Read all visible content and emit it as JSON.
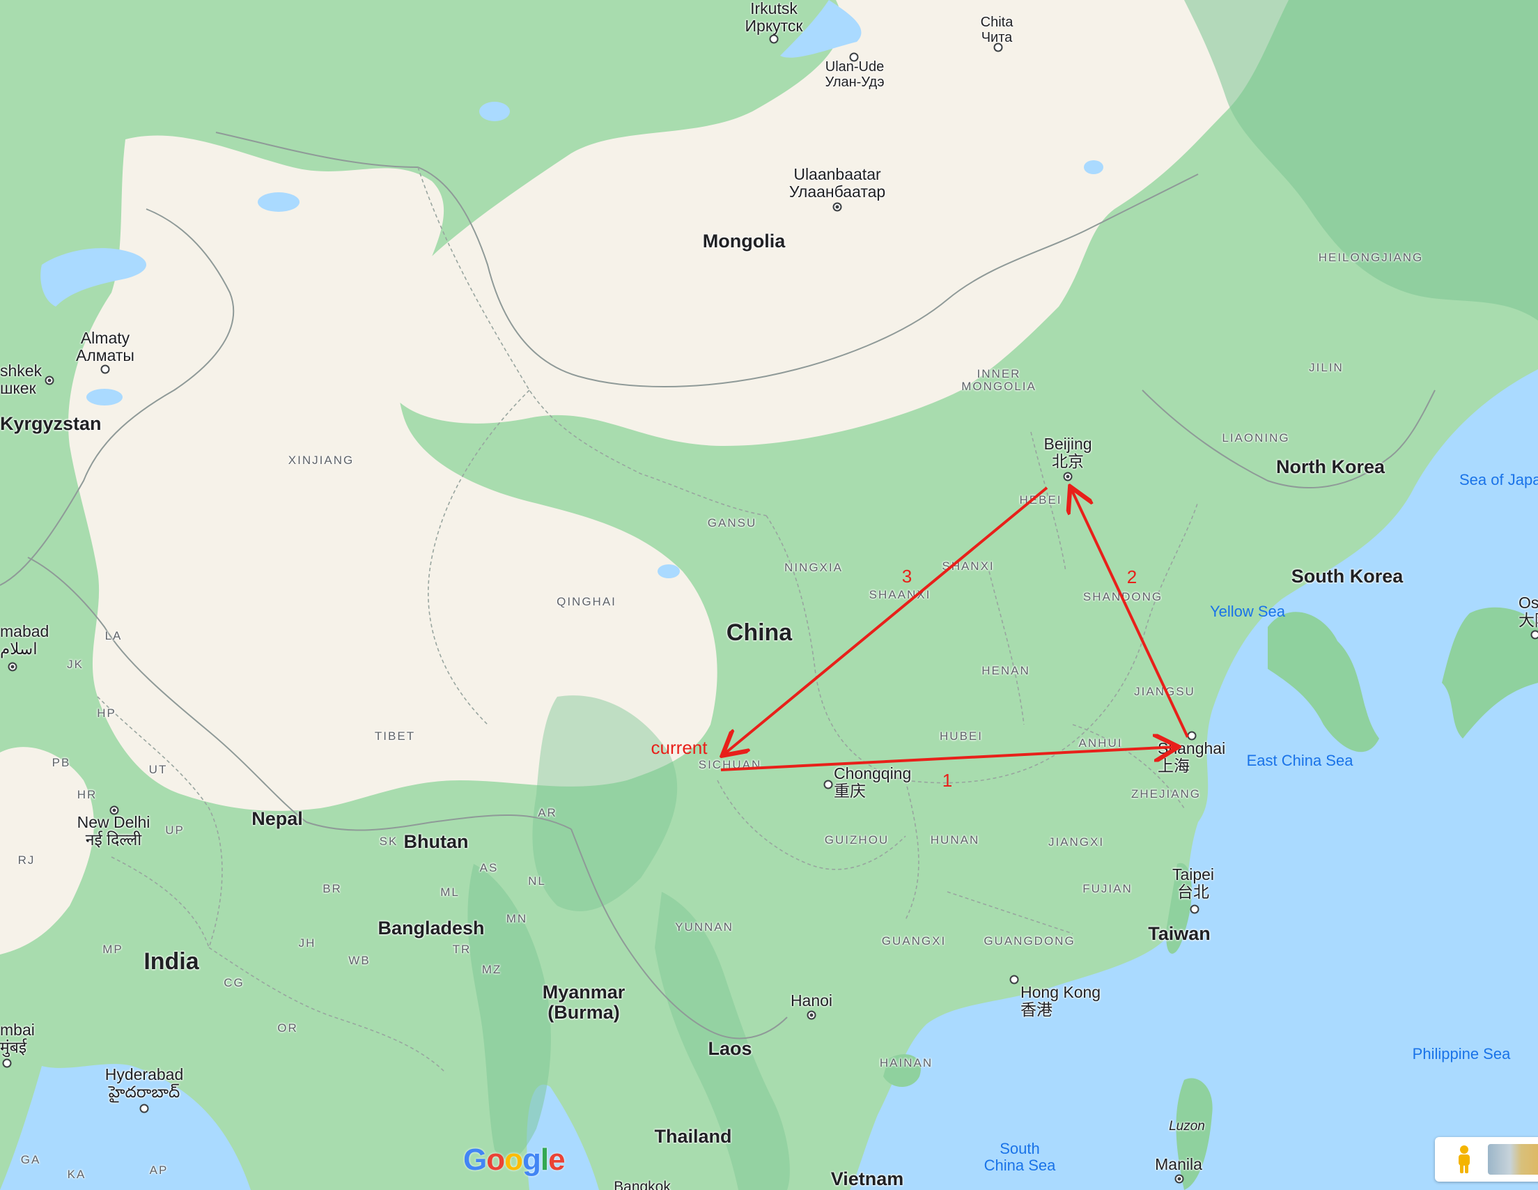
{
  "map": {
    "provider_logo": "Google",
    "colors": {
      "water": "#aadaff",
      "desert": "#f6f2e9",
      "vegetation": "#a8dcae",
      "forest": "#7cc594",
      "annotation": "#e8201a"
    }
  },
  "countries": {
    "china": "China",
    "mongolia": "Mongolia",
    "north_korea": "North Korea",
    "south_korea": "South Korea",
    "kyrgyzstan": "Kyrgyzstan",
    "nepal": "Nepal",
    "bhutan": "Bhutan",
    "bangladesh": "Bangladesh",
    "india": "India",
    "myanmar": [
      "Myanmar",
      "(Burma)"
    ],
    "laos": "Laos",
    "thailand": "Thailand",
    "vietnam": "Vietnam",
    "taiwan": "Taiwan"
  },
  "cities": {
    "irkutsk": [
      "Irkutsk",
      "Иркутск"
    ],
    "chita": [
      "Chita",
      "Чита"
    ],
    "ulan_ude": [
      "Ulan-Ude",
      "Улан-Удэ"
    ],
    "ulaanbaatar": [
      "Ulaanbaatar",
      "Улаанбаатар"
    ],
    "almaty": [
      "Almaty",
      "Алматы"
    ],
    "bishkek": [
      "shkek",
      "шкек"
    ],
    "beijing": [
      "Beijing",
      "北京"
    ],
    "shanghai": [
      "Shanghai",
      "上海"
    ],
    "chongqing": [
      "Chongqing",
      "重庆"
    ],
    "taipei": [
      "Taipei",
      "台北"
    ],
    "hong_kong": [
      "Hong Kong",
      "香港"
    ],
    "hanoi": "Hanoi",
    "new_delhi": [
      "New Delhi",
      "नई दिल्ली"
    ],
    "islamabad": [
      "mabad",
      "اسلام"
    ],
    "mumbai": [
      "mbai",
      "मुंबई"
    ],
    "hyderabad": [
      "Hyderabad",
      "హైదరాబాద్"
    ],
    "manila": "Manila",
    "osaka": [
      "Osa",
      "大阪"
    ],
    "bangkok": "Bangkok",
    "luzon": "Luzon"
  },
  "regions": {
    "xinjiang": "XINJIANG",
    "tibet": "TIBET",
    "qinghai": "QINGHAI",
    "gansu": "GANSU",
    "ningxia": "NINGXIA",
    "shaanxi": "SHAANXI",
    "shanxi": "SHANXI",
    "hebei": "HEBEI",
    "shandong": "SHANDONG",
    "henan": "HENAN",
    "jiangsu": "JIANGSU",
    "anhui": "ANHUI",
    "hubei": "HUBEI",
    "sichuan": "SICHUAN",
    "zhejiang": "ZHEJIANG",
    "guizhou": "GUIZHOU",
    "hunan": "HUNAN",
    "jiangxi": "JIANGXI",
    "fujian": "FUJIAN",
    "yunnan": "YUNNAN",
    "guangxi": "GUANGXI",
    "guangdong": "GUANGDONG",
    "hainan": "HAINAN",
    "inner_mongolia": [
      "INNER",
      "MONGOLIA"
    ],
    "liaoning": "LIAONING",
    "jilin": "JILIN",
    "heilongjiang": "HEILONGJIANG",
    "la": "LA",
    "jk": "JK",
    "hp": "HP",
    "pb": "PB",
    "ut": "UT",
    "hr": "HR",
    "up": "UP",
    "rj": "RJ",
    "br": "BR",
    "sk": "SK",
    "ar": "AR",
    "as": "AS",
    "nl": "NL",
    "ml": "ML",
    "mn": "MN",
    "tr": "TR",
    "mz": "MZ",
    "wb": "WB",
    "jh": "JH",
    "mp": "MP",
    "cg": "CG",
    "or": "OR",
    "ga": "GA",
    "ka": "KA",
    "ap": "AP"
  },
  "waters": {
    "sea_of_japan": "Sea of Japa",
    "yellow_sea": "Yellow Sea",
    "east_china_sea": "East China Sea",
    "philippine_sea": "Philippine Sea",
    "south_china_sea": [
      "South",
      "China Sea"
    ]
  },
  "annotations": {
    "route_1": "1",
    "route_2": "2",
    "route_3": "3",
    "current": "current",
    "color": "#e8201a"
  },
  "controls": {
    "pegman_icon": "pegman-icon",
    "layers_icon": "layers-thumbnail"
  }
}
